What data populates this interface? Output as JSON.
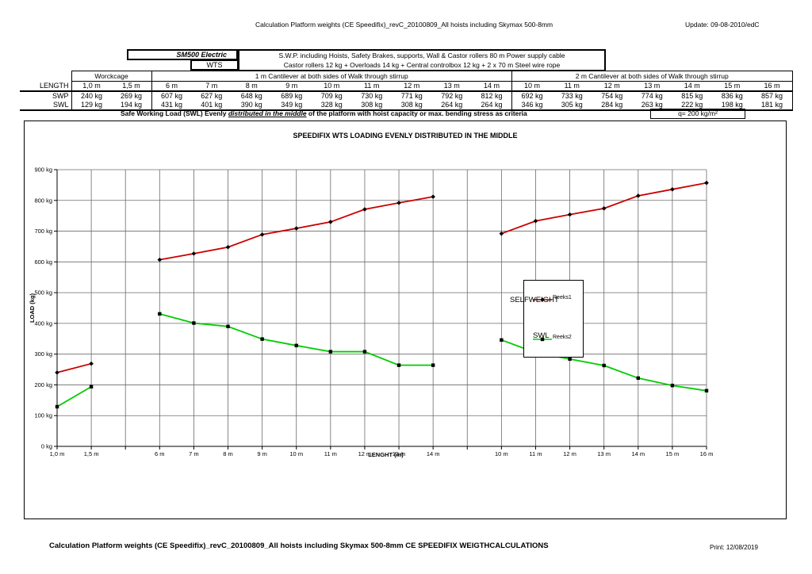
{
  "page": {
    "header_title": "Calculation Platform weights (CE Speedifix)_revC_20100809_All hoists including Skymax 500-8mm",
    "update": "Update: 09-08-2010/edC",
    "footer_title": "Calculation Platform weights (CE Speedifix)_revC_20100809_All hoists including Skymax 500-8mm CE SPEEDIFIX WEIGTHCALCULATIONS",
    "print": "Print: 12/08/2019"
  },
  "info_box": {
    "model": "SM500  Electric",
    "wts": "WTS",
    "swp_desc": "S.W.P. including Hoists, Safety Brakes, supports, Wall & Castor rollers 80 m Power supply cable",
    "wts_desc": "Castor rollers 12 kg + Overloads 14 kg + Central controlbox 12 kg + 2 x 70 m Steel wire rope"
  },
  "table": {
    "length_label": "LENGTH",
    "groups": [
      {
        "label": "Worckcage",
        "span": 2
      },
      {
        "label": "1 m Cantilever at both sides of Walk through stirrup",
        "span": 9
      },
      {
        "label": "2 m Cantilever at both sides of Walk through stirrup",
        "span": 7
      }
    ],
    "lengths": [
      "1,0 m",
      "1,5 m",
      "6 m",
      "7 m",
      "8 m",
      "9 m",
      "10 m",
      "11 m",
      "12 m",
      "13 m",
      "14 m",
      "10 m",
      "11 m",
      "12 m",
      "13 m",
      "14 m",
      "15 m",
      "16 m"
    ],
    "rows": [
      {
        "label": "SWP",
        "values": [
          "240 kg",
          "269 kg",
          "607 kg",
          "627 kg",
          "648 kg",
          "689 kg",
          "709 kg",
          "730 kg",
          "771 kg",
          "792 kg",
          "812 kg",
          "692 kg",
          "733 kg",
          "754 kg",
          "774 kg",
          "815 kg",
          "836 kg",
          "857 kg"
        ]
      },
      {
        "label": "SWL",
        "values": [
          "129 kg",
          "194 kg",
          "431 kg",
          "401 kg",
          "390 kg",
          "349 kg",
          "328 kg",
          "308 kg",
          "308 kg",
          "264 kg",
          "264 kg",
          "346 kg",
          "305 kg",
          "284 kg",
          "263 kg",
          "222 kg",
          "198 kg",
          "181 kg"
        ]
      }
    ]
  },
  "criteria": {
    "prefix": "Safe Working Load (SWL) Evenly ",
    "emphasis": "distributed in the middle",
    "suffix": " of the platform with hoist capacity or max. bending stress as criteria",
    "q": "q= 200 kg/m²"
  },
  "chart_data": {
    "type": "line",
    "title": "SPEEDIFIX WTS LOADING EVENLY DISTRIBUTED IN THE MIDDLE",
    "xlabel": "LENGHT (m)",
    "ylabel": "LOAD (kg)",
    "ylim": [
      0,
      900
    ],
    "ytick_step": 100,
    "ytick_suffix": " kg",
    "grid": true,
    "legend_position": "center-overlay",
    "categories": [
      "1,0 m",
      "1,5 m",
      "",
      "6 m",
      "7 m",
      "8 m",
      "9 m",
      "10 m",
      "11 m",
      "12 m",
      "13 m",
      "14 m",
      "",
      "10 m",
      "11 m",
      "12 m",
      "13 m",
      "14 m",
      "15 m",
      "16 m"
    ],
    "series": [
      {
        "name": "Reeks1",
        "annotation": "SELFWEIGHT",
        "color": "#cc0000",
        "marker": "diamond",
        "values": [
          240,
          269,
          null,
          607,
          627,
          648,
          689,
          709,
          730,
          771,
          792,
          812,
          null,
          692,
          733,
          754,
          774,
          815,
          836,
          857
        ]
      },
      {
        "name": "Reeks2",
        "annotation": "SWL",
        "color": "#00cc00",
        "marker": "square",
        "values": [
          129,
          194,
          null,
          431,
          401,
          390,
          349,
          328,
          308,
          308,
          264,
          264,
          null,
          346,
          305,
          284,
          263,
          222,
          198,
          181
        ]
      }
    ]
  }
}
